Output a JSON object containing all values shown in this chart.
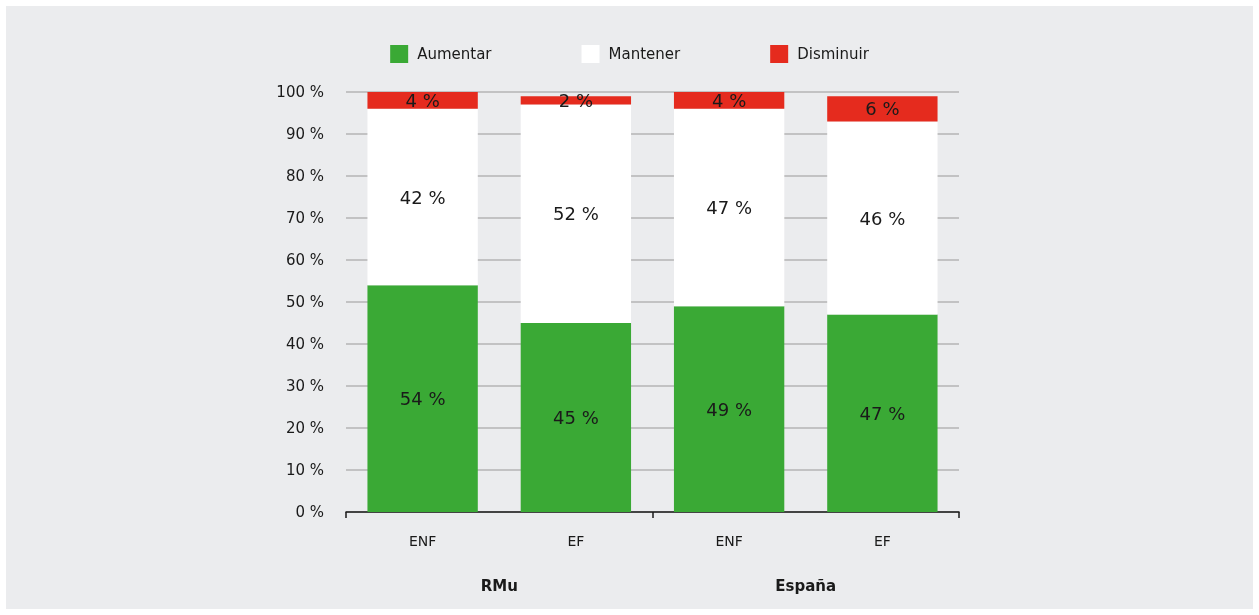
{
  "chart_data": {
    "type": "bar",
    "stacked": true,
    "categories": [
      "ENF",
      "EF",
      "ENF",
      "EF"
    ],
    "annotations": [
      "RMu",
      "España"
    ],
    "series": [
      {
        "name": "Aumentar",
        "color": "#3aa935",
        "values": [
          54,
          45,
          49,
          47
        ],
        "value_labels": [
          "54 %",
          "45 %",
          "49 %",
          "47 %"
        ]
      },
      {
        "name": "Mantener",
        "color": "#ffffff",
        "values": [
          42,
          52,
          47,
          46
        ],
        "value_labels": [
          "42 %",
          "52 %",
          "47 %",
          "46 %"
        ]
      },
      {
        "name": "Disminuir",
        "color": "#e52b1e",
        "values": [
          4,
          2,
          4,
          6
        ],
        "value_labels": [
          "4 %",
          "2 %",
          "4 %",
          "6 %"
        ]
      }
    ],
    "ylim": [
      0,
      100
    ],
    "yticks": [
      {
        "value": 0,
        "label": "0 %"
      },
      {
        "value": 10,
        "label": "10 %"
      },
      {
        "value": 20,
        "label": "20 %"
      },
      {
        "value": 30,
        "label": "30 %"
      },
      {
        "value": 40,
        "label": "40 %"
      },
      {
        "value": 50,
        "label": "50 %"
      },
      {
        "value": 60,
        "label": "60 %"
      },
      {
        "value": 70,
        "label": "70 %"
      },
      {
        "value": 80,
        "label": "80 %"
      },
      {
        "value": 90,
        "label": "90 %"
      },
      {
        "value": 100,
        "label": "100 %"
      }
    ],
    "grid": "y",
    "legend": "top"
  }
}
